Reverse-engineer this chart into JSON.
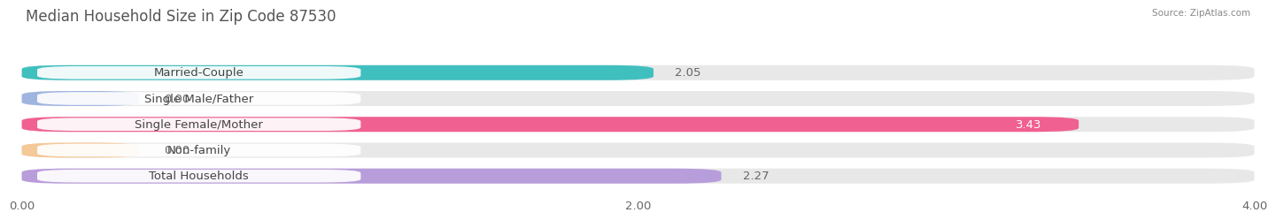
{
  "title": "Median Household Size in Zip Code 87530",
  "source": "Source: ZipAtlas.com",
  "categories": [
    "Married-Couple",
    "Single Male/Father",
    "Single Female/Mother",
    "Non-family",
    "Total Households"
  ],
  "values": [
    2.05,
    0.0,
    3.43,
    0.0,
    2.27
  ],
  "bar_colors": [
    "#40bfbf",
    "#a0b4e0",
    "#f06090",
    "#f5c898",
    "#b89ddb"
  ],
  "xlim": [
    0,
    4.0
  ],
  "xticks": [
    0.0,
    2.0,
    4.0
  ],
  "xtick_labels": [
    "0.00",
    "2.00",
    "4.00"
  ],
  "background_color": "#ffffff",
  "bar_background_color": "#e8e8e8",
  "title_fontsize": 12,
  "label_fontsize": 9.5,
  "value_fontsize": 9.5,
  "bar_height": 0.58,
  "zero_bar_width": 0.38
}
